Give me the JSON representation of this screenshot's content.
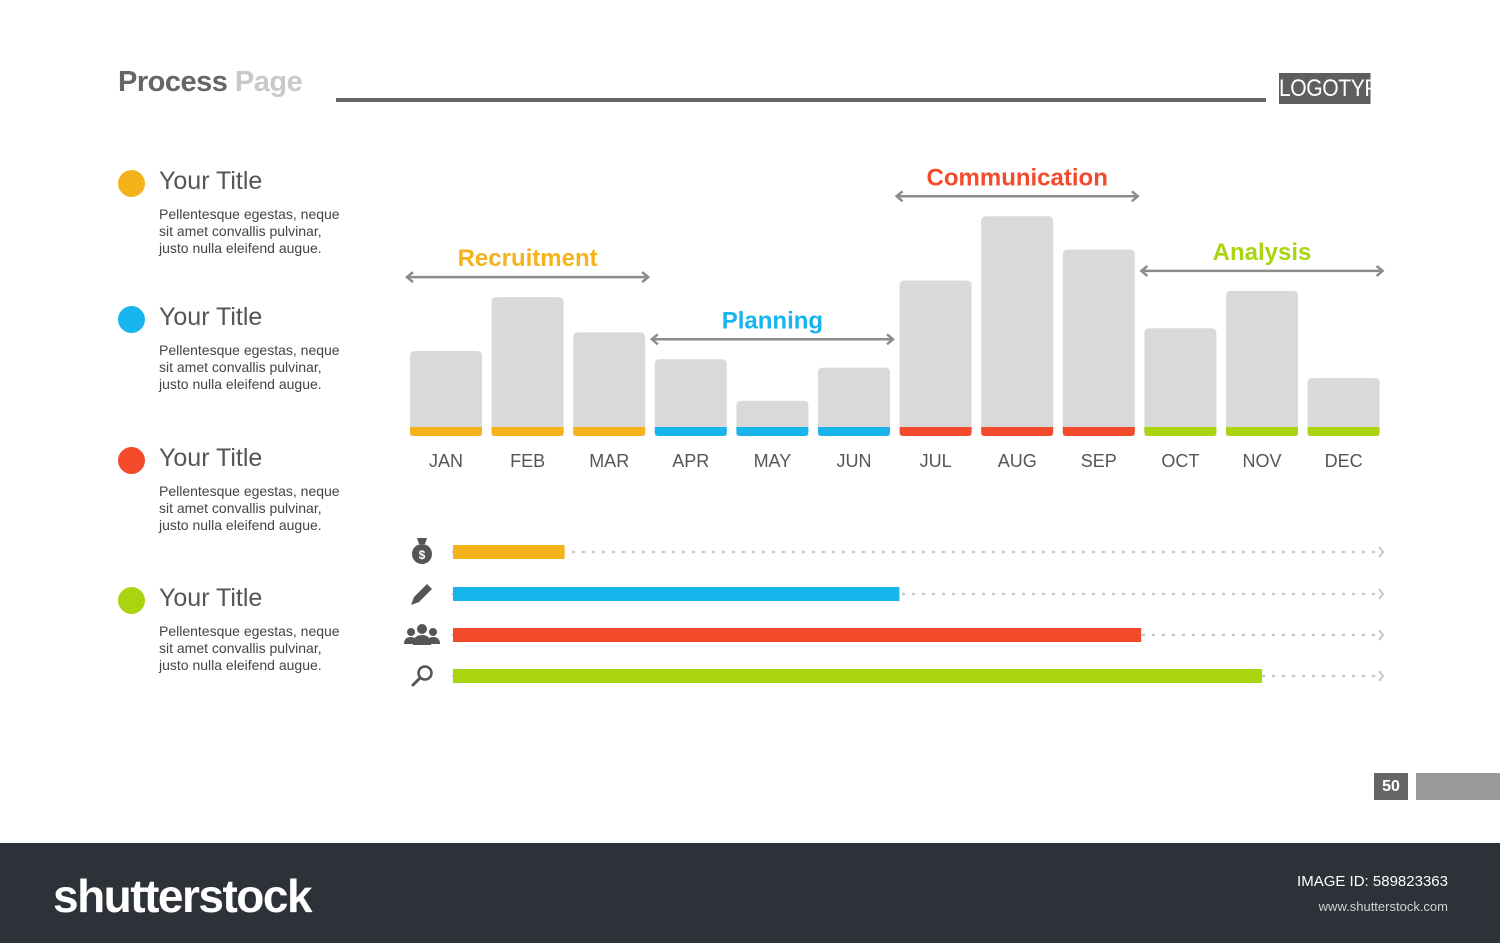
{
  "header": {
    "title_part1": "Process",
    "title_part2": "Page",
    "logo": "LOGOTYPE"
  },
  "legend": [
    {
      "title": "Your Title",
      "description": "Pellentesque egestas, neque sit amet convallis pulvinar, justo nulla eleifend augue.",
      "color": "#f5b31b"
    },
    {
      "title": "Your Title",
      "description": "Pellentesque egestas, neque sit amet convallis pulvinar, justo nulla eleifend augue.",
      "color": "#17b4ee"
    },
    {
      "title": "Your Title",
      "description": "Pellentesque egestas, neque sit amet convallis pulvinar, justo nulla eleifend augue.",
      "color": "#f44a2c"
    },
    {
      "title": "Your Title",
      "description": "Pellentesque egestas, neque sit amet convallis pulvinar, justo nulla eleifend augue.",
      "color": "#a8d50f"
    }
  ],
  "chart_data": [
    {
      "type": "bar",
      "categories": [
        "JAN",
        "FEB",
        "MAR",
        "APR",
        "MAY",
        "JUN",
        "JUL",
        "AUG",
        "SEP",
        "OCT",
        "NOV",
        "DEC"
      ],
      "values": [
        41,
        67,
        50,
        37,
        17,
        33,
        75,
        106,
        90,
        52,
        70,
        28
      ],
      "ylim": [
        0,
        110
      ],
      "bar_color": "#d9d9d9",
      "phases": [
        {
          "name": "Recruitment",
          "start": "JAN",
          "end": "MAR",
          "color": "#f5b31b"
        },
        {
          "name": "Planning",
          "start": "APR",
          "end": "JUN",
          "color": "#17b4ee"
        },
        {
          "name": "Communication",
          "start": "JUL",
          "end": "SEP",
          "color": "#f44a2c"
        },
        {
          "name": "Analysis",
          "start": "OCT",
          "end": "DEC",
          "color": "#a8d50f"
        }
      ]
    },
    {
      "type": "bar",
      "orientation": "horizontal",
      "values_percent": [
        12,
        48,
        74,
        87
      ],
      "icons": [
        "money-bag-icon",
        "pencil-icon",
        "people-icon",
        "magnifier-icon"
      ],
      "colors": [
        "#f5b31b",
        "#17b4ee",
        "#f44a2c",
        "#a8d50f"
      ]
    }
  ],
  "page": {
    "number": "50"
  },
  "footer": {
    "brand": "shutterstock",
    "image_id_label": "IMAGE ID:",
    "image_id": "589823363",
    "url": "www.shutterstock.com"
  }
}
